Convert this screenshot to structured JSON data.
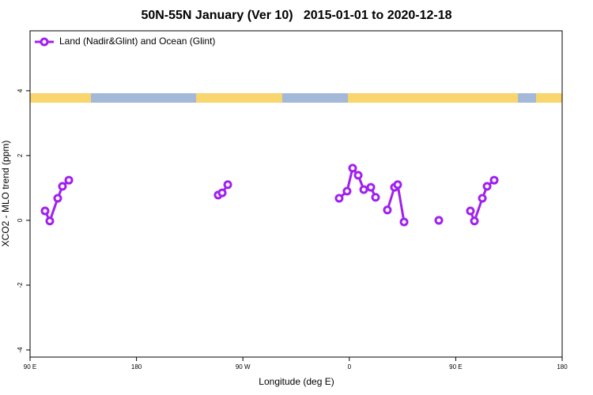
{
  "chart_data": {
    "type": "line",
    "title": "50N-55N January (Ver 10)   2015-01-01 to 2020-12-18",
    "xlabel": "Longitude (deg E)",
    "ylabel": "XCO2 - MLO trend (ppm)",
    "x": [
      102.7,
      106.7,
      113.4,
      117.4,
      122.8,
      null,
      249.1,
      252.5,
      257.2,
      null,
      351.4,
      358.1,
      362.8,
      367.5,
      372.2,
      378.2,
      382.2,
      null,
      392.2,
      398.2,
      400.9,
      406.3,
      null,
      435.7,
      null,
      462.4,
      465.8,
      472.5,
      476.5,
      482.5
    ],
    "series": [
      {
        "name": "Land (Nadir&Glint) and Ocean (Glint)",
        "color": "#a020f0",
        "values": [
          0.29,
          -0.02,
          0.68,
          1.05,
          1.24,
          null,
          0.78,
          0.85,
          1.1,
          null,
          0.68,
          0.9,
          1.61,
          1.39,
          0.95,
          1.02,
          0.71,
          null,
          0.32,
          1.02,
          1.1,
          -0.05,
          null,
          0.0,
          null,
          0.29,
          -0.02,
          0.68,
          1.05,
          1.24
        ]
      }
    ],
    "xlim": [
      90,
      540
    ],
    "xticks": [
      {
        "value": 90,
        "label": "90 E"
      },
      180,
      {
        "value": 270,
        "label": "90 W"
      },
      {
        "value": 360,
        "label": "0"
      },
      {
        "value": 450,
        "label": "90 E"
      },
      180
    ],
    "ylim": [
      -4.22,
      5.85
    ],
    "yticks": [
      -4,
      -2,
      0,
      2,
      4
    ],
    "legend": "upper left"
  }
}
